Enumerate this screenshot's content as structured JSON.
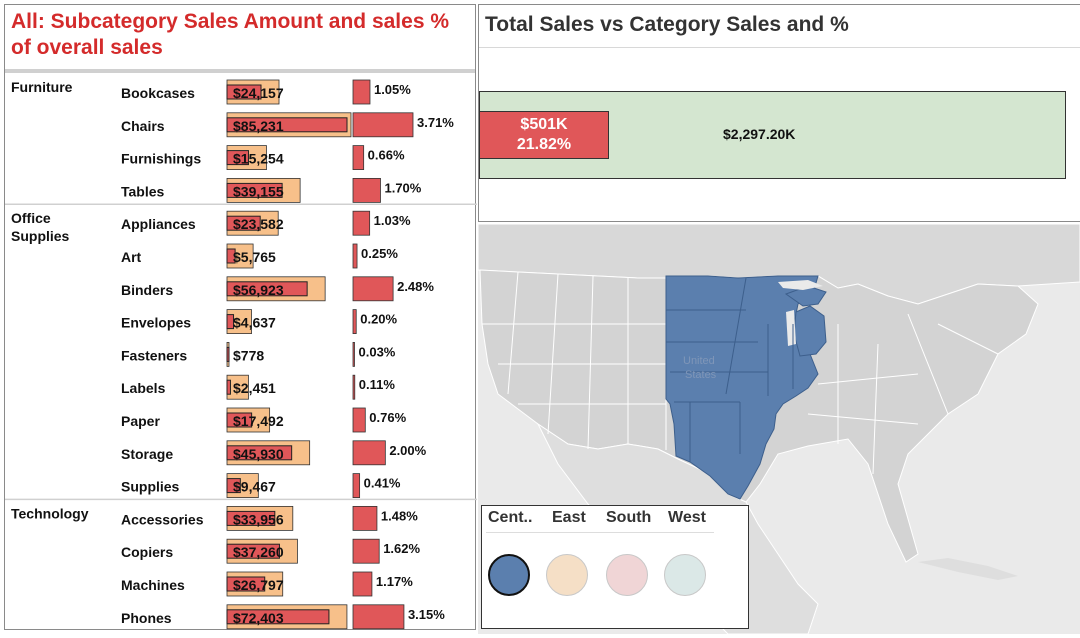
{
  "left": {
    "title": "All: Subcategory Sales Amount and sales % of overall sales"
  },
  "top_right": {
    "title": "Total Sales vs Category Sales and %",
    "category_value_label": "$501K",
    "category_pct_label": "21.82%",
    "total_label": "$2,297.20K"
  },
  "map": {
    "label_line1": "United",
    "label_line2": "States",
    "legend": [
      {
        "label": "Cent..",
        "color": "#5b7fae",
        "selected": true
      },
      {
        "label": "East",
        "color": "#f5dfc6",
        "selected": false
      },
      {
        "label": "South",
        "color": "#f0d5d6",
        "selected": false
      },
      {
        "label": "West",
        "color": "#dbe8e7",
        "selected": false
      }
    ]
  },
  "colors": {
    "sales_bar": "#e05759",
    "reference_band": "#f7c08a",
    "total_bar": "#d4e6d0",
    "central_region": "#5b7fae",
    "title_red": "#d42b2b"
  },
  "chart_data": [
    {
      "type": "bar",
      "title": "All: Subcategory Sales Amount and sales % of overall sales",
      "groups": [
        {
          "category": "Furniture",
          "rows": [
            {
              "subcategory": "Bookcases",
              "sales": 24157,
              "sales_label": "$24,157",
              "pct": 1.05,
              "pct_label": "1.05%"
            },
            {
              "subcategory": "Chairs",
              "sales": 85231,
              "sales_label": "$85,231",
              "pct": 3.71,
              "pct_label": "3.71%"
            },
            {
              "subcategory": "Furnishings",
              "sales": 15254,
              "sales_label": "$15,254",
              "pct": 0.66,
              "pct_label": "0.66%"
            },
            {
              "subcategory": "Tables",
              "sales": 39155,
              "sales_label": "$39,155",
              "pct": 1.7,
              "pct_label": "1.70%"
            }
          ]
        },
        {
          "category": "Office Supplies",
          "rows": [
            {
              "subcategory": "Appliances",
              "sales": 23582,
              "sales_label": "$23,582",
              "pct": 1.03,
              "pct_label": "1.03%"
            },
            {
              "subcategory": "Art",
              "sales": 5765,
              "sales_label": "$5,765",
              "pct": 0.25,
              "pct_label": "0.25%"
            },
            {
              "subcategory": "Binders",
              "sales": 56923,
              "sales_label": "$56,923",
              "pct": 2.48,
              "pct_label": "2.48%"
            },
            {
              "subcategory": "Envelopes",
              "sales": 4637,
              "sales_label": "$4,637",
              "pct": 0.2,
              "pct_label": "0.20%"
            },
            {
              "subcategory": "Fasteners",
              "sales": 778,
              "sales_label": "$778",
              "pct": 0.03,
              "pct_label": "0.03%"
            },
            {
              "subcategory": "Labels",
              "sales": 2451,
              "sales_label": "$2,451",
              "pct": 0.11,
              "pct_label": "0.11%"
            },
            {
              "subcategory": "Paper",
              "sales": 17492,
              "sales_label": "$17,492",
              "pct": 0.76,
              "pct_label": "0.76%"
            },
            {
              "subcategory": "Storage",
              "sales": 45930,
              "sales_label": "$45,930",
              "pct": 2.0,
              "pct_label": "2.00%"
            },
            {
              "subcategory": "Supplies",
              "sales": 9467,
              "sales_label": "$9,467",
              "pct": 0.41,
              "pct_label": "0.41%"
            }
          ]
        },
        {
          "category": "Technology",
          "rows": [
            {
              "subcategory": "Accessories",
              "sales": 33956,
              "sales_label": "$33,956",
              "pct": 1.48,
              "pct_label": "1.48%"
            },
            {
              "subcategory": "Copiers",
              "sales": 37260,
              "sales_label": "$37,260",
              "pct": 1.62,
              "pct_label": "1.62%"
            },
            {
              "subcategory": "Machines",
              "sales": 26797,
              "sales_label": "$26,797",
              "pct": 1.17,
              "pct_label": "1.17%"
            },
            {
              "subcategory": "Phones",
              "sales": 72403,
              "sales_label": "$72,403",
              "pct": 3.15,
              "pct_label": "3.15%"
            }
          ]
        }
      ]
    },
    {
      "type": "bar",
      "title": "Total Sales vs Category Sales and %",
      "series": [
        {
          "name": "",
          "values": [
            501000
          ],
          "label": "$501K"
        },
        {
          "name": "",
          "values": [
            2297200
          ],
          "label": "$2,297.20K"
        }
      ],
      "category_pct": 21.82
    }
  ]
}
